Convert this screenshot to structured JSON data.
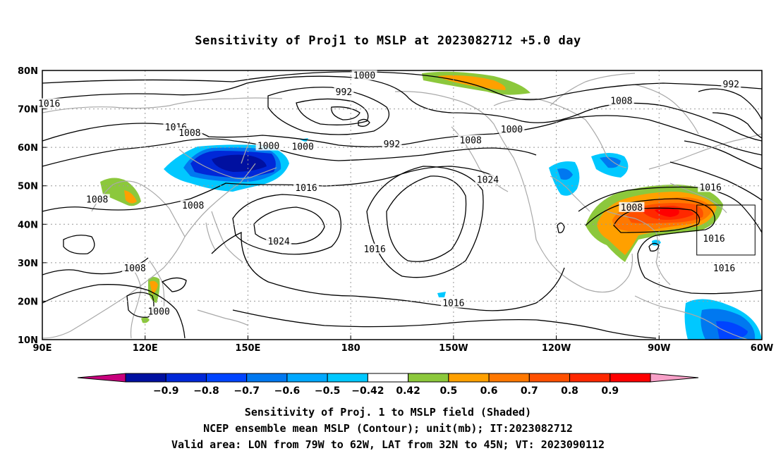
{
  "title": "Sensitivity of Proj1 to MSLP at 2023082712 +5.0 day",
  "map": {
    "lon_range": [
      90,
      300
    ],
    "lat_range": [
      10,
      80
    ],
    "lon_ticks": [
      {
        "lon": 90,
        "label": "90E"
      },
      {
        "lon": 120,
        "label": "120E"
      },
      {
        "lon": 150,
        "label": "150E"
      },
      {
        "lon": 180,
        "label": "180"
      },
      {
        "lon": 210,
        "label": "150W"
      },
      {
        "lon": 240,
        "label": "120W"
      },
      {
        "lon": 270,
        "label": "90W"
      },
      {
        "lon": 300,
        "label": "60W"
      }
    ],
    "lat_ticks": [
      {
        "lat": 10,
        "label": "10N"
      },
      {
        "lat": 20,
        "label": "20N"
      },
      {
        "lat": 30,
        "label": "30N"
      },
      {
        "lat": 40,
        "label": "40N"
      },
      {
        "lat": 50,
        "label": "50N"
      },
      {
        "lat": 60,
        "label": "60N"
      },
      {
        "lat": 70,
        "label": "70N"
      },
      {
        "lat": 80,
        "label": "80N"
      }
    ],
    "grid": true,
    "valid_box": {
      "lon_min": 281,
      "lon_max": 298,
      "lat_min": 32,
      "lat_max": 45
    }
  },
  "contour_labels": [
    {
      "text": "1000",
      "lon": 184,
      "lat": 78.6
    },
    {
      "text": "992",
      "lon": 178,
      "lat": 74.3
    },
    {
      "text": "992",
      "lon": 291,
      "lat": 76.3
    },
    {
      "text": "1016",
      "lon": 92,
      "lat": 71.3
    },
    {
      "text": "1016",
      "lon": 129,
      "lat": 65.2
    },
    {
      "text": "1008",
      "lon": 133,
      "lat": 63.7
    },
    {
      "text": "1000",
      "lon": 156,
      "lat": 60.3
    },
    {
      "text": "1000",
      "lon": 166,
      "lat": 60.1
    },
    {
      "text": "1000",
      "lon": 227,
      "lat": 64.6
    },
    {
      "text": "992",
      "lon": 192,
      "lat": 60.8
    },
    {
      "text": "1008",
      "lon": 215,
      "lat": 61.8
    },
    {
      "text": "1008",
      "lon": 259,
      "lat": 72.0
    },
    {
      "text": "1016",
      "lon": 167,
      "lat": 49.4
    },
    {
      "text": "1024",
      "lon": 220,
      "lat": 51.5
    },
    {
      "text": "1008",
      "lon": 106,
      "lat": 46.4
    },
    {
      "text": "1008",
      "lon": 134,
      "lat": 44.8
    },
    {
      "text": "1008",
      "lon": 262,
      "lat": 44.3
    },
    {
      "text": "1016",
      "lon": 285,
      "lat": 49.5
    },
    {
      "text": "1024",
      "lon": 159,
      "lat": 35.5
    },
    {
      "text": "1016",
      "lon": 187,
      "lat": 33.5
    },
    {
      "text": "1016",
      "lon": 286,
      "lat": 36.2
    },
    {
      "text": "1016",
      "lon": 289,
      "lat": 28.5
    },
    {
      "text": "1008",
      "lon": 117,
      "lat": 28.5
    },
    {
      "text": "1016",
      "lon": 210,
      "lat": 19.4
    },
    {
      "text": "1000",
      "lon": 124,
      "lat": 17.2
    }
  ],
  "colorbar": {
    "colors": [
      "#c8007d",
      "#0010a0",
      "#0028d8",
      "#0044ff",
      "#0078f0",
      "#00a8ff",
      "#00c8ff",
      "#ffffff",
      "#8cc83c",
      "#ffa000",
      "#ff7800",
      "#ff5000",
      "#ff2800",
      "#ff0000",
      "#f8a0c8"
    ],
    "labels": [
      "-0.9",
      "-0.8",
      "-0.7",
      "-0.6",
      "-0.5",
      "-0.42",
      "0.42",
      "0.5",
      "0.6",
      "0.7",
      "0.8",
      "0.9"
    ]
  },
  "captions": [
    "Sensitivity of Proj. 1 to MSLP field (Shaded)",
    "NCEP ensemble mean MSLP (Contour); unit(mb); IT:2023082712",
    "Valid area: LON from 79W to 62W, LAT from 32N to 45N; VT: 2023090112"
  ]
}
